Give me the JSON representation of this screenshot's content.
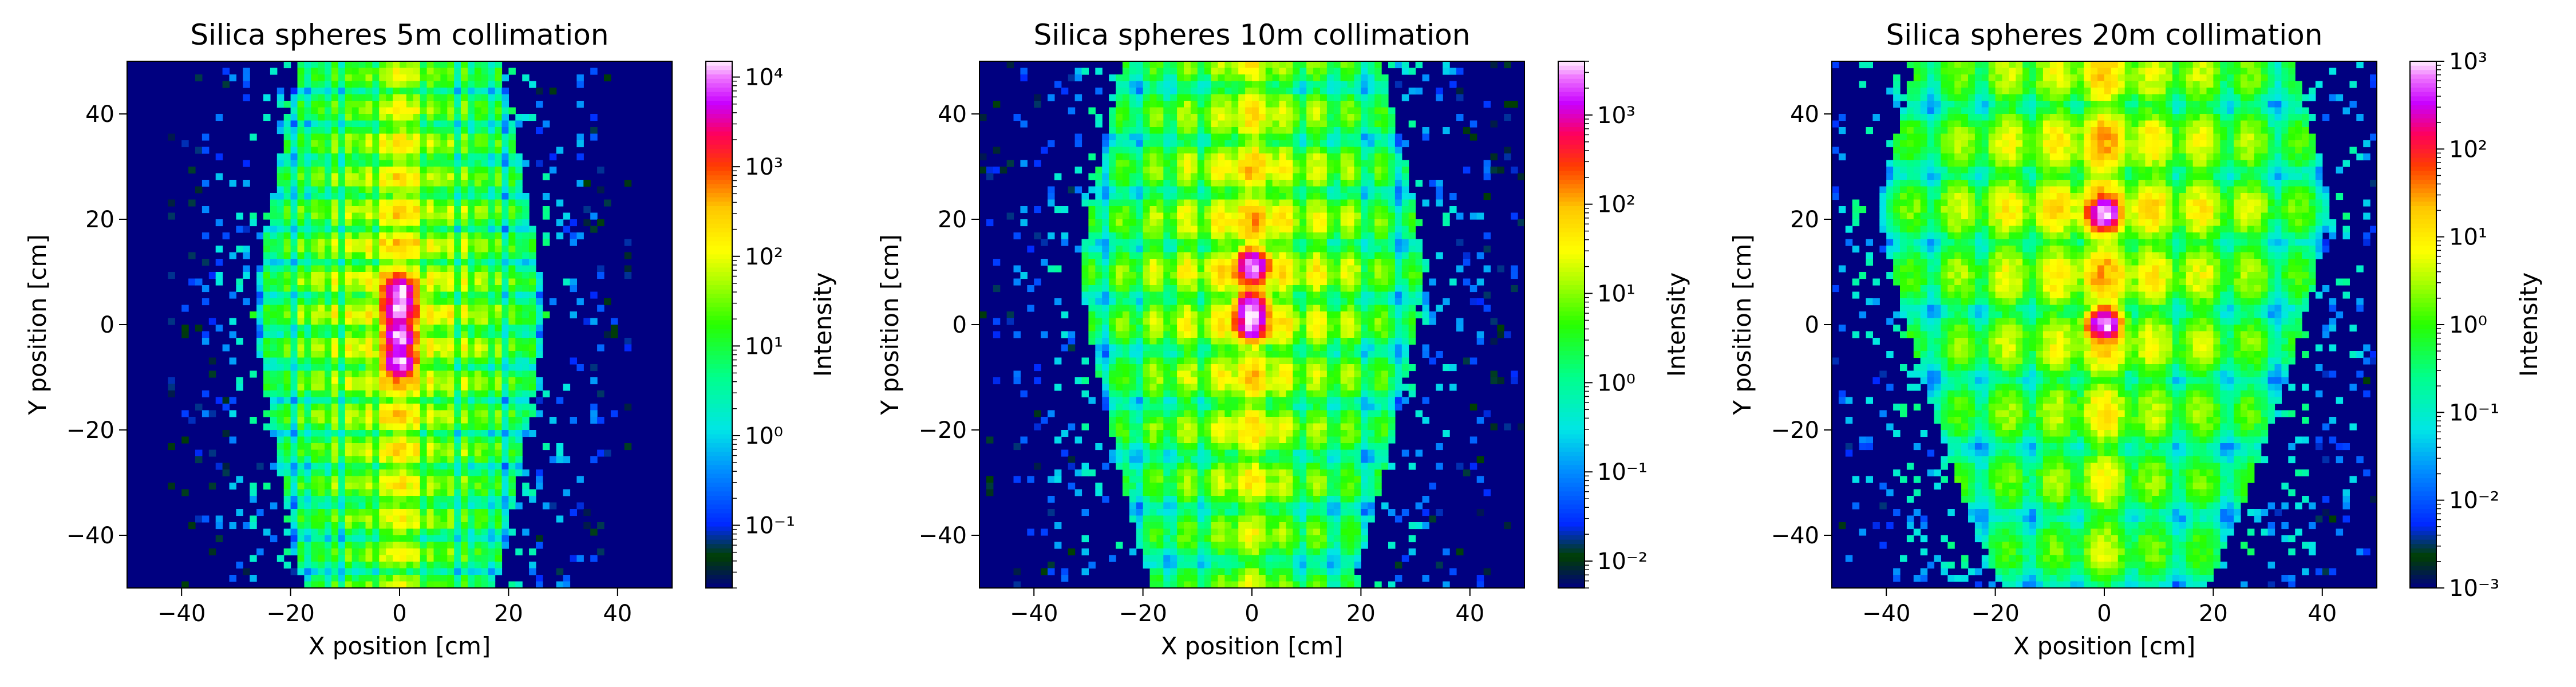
{
  "chart_data": [
    {
      "type": "heatmap",
      "title": "Silica spheres 5m collimation",
      "xlabel": "X position [cm]",
      "ylabel": "Y position [cm]",
      "xlim": [
        -50,
        50
      ],
      "ylim": [
        -50,
        50
      ],
      "xticks": [
        -40,
        -20,
        0,
        20,
        40
      ],
      "yticks": [
        -40,
        -20,
        0,
        20,
        40
      ],
      "xtick_labels": [
        "−40",
        "−20",
        "0",
        "20",
        "40"
      ],
      "ytick_labels": [
        "−40",
        "−20",
        "0",
        "20",
        "40"
      ],
      "colorbar": {
        "label": "Intensity",
        "scale": "log",
        "range": [
          0.02,
          15000
        ],
        "major_exps": [
          -1,
          0,
          1,
          2,
          3,
          4
        ],
        "tick_labels": [
          "10⁻¹",
          "10⁰",
          "10¹",
          "10²",
          "10³",
          "10⁴"
        ]
      },
      "pattern": {
        "beam_center": [
          0,
          2
        ],
        "row_spacing_cm": 6.5,
        "column_spacing_cm": 3,
        "band_half_width_cm": 22,
        "peak_intensity": 15000,
        "hot_spots": [
          [
            0,
            6
          ],
          [
            0,
            3
          ],
          [
            0,
            -2
          ],
          [
            0,
            -7
          ]
        ]
      }
    },
    {
      "type": "heatmap",
      "title": "Silica spheres 10m collimation",
      "xlabel": "X position [cm]",
      "ylabel": "Y position [cm]",
      "xlim": [
        -50,
        50
      ],
      "ylim": [
        -50,
        50
      ],
      "xticks": [
        -40,
        -20,
        0,
        20,
        40
      ],
      "yticks": [
        -40,
        -20,
        0,
        20,
        40
      ],
      "xtick_labels": [
        "−40",
        "−20",
        "0",
        "20",
        "40"
      ],
      "ytick_labels": [
        "−40",
        "−20",
        "0",
        "20",
        "40"
      ],
      "colorbar": {
        "label": "Intensity",
        "scale": "log",
        "range": [
          0.005,
          4000
        ],
        "major_exps": [
          -2,
          -1,
          0,
          1,
          2,
          3
        ],
        "tick_labels": [
          "10⁻²",
          "10⁻¹",
          "10⁰",
          "10¹",
          "10²",
          "10³"
        ]
      },
      "pattern": {
        "beam_center": [
          0,
          10
        ],
        "row_spacing_cm": 10,
        "column_spacing_cm": 6,
        "band_half_width_cm": 26,
        "peak_intensity": 4000,
        "hot_spots": [
          [
            0,
            11
          ],
          [
            0,
            3
          ],
          [
            0,
            0
          ]
        ]
      }
    },
    {
      "type": "heatmap",
      "title": "Silica spheres 20m collimation",
      "xlabel": "X position [cm]",
      "ylabel": "Y position [cm]",
      "xlim": [
        -50,
        50
      ],
      "ylim": [
        -50,
        50
      ],
      "xticks": [
        -40,
        -20,
        0,
        20,
        40
      ],
      "yticks": [
        -40,
        -20,
        0,
        20,
        40
      ],
      "xtick_labels": [
        "−40",
        "−20",
        "0",
        "20",
        "40"
      ],
      "ytick_labels": [
        "−40",
        "−20",
        "0",
        "20",
        "40"
      ],
      "colorbar": {
        "label": "Intensity",
        "scale": "log",
        "range": [
          0.001,
          1000
        ],
        "major_exps": [
          -3,
          -2,
          -1,
          0,
          1,
          2,
          3
        ],
        "tick_labels": [
          "10⁻³",
          "10⁻²",
          "10⁻¹",
          "10⁰",
          "10¹",
          "10²",
          "10³"
        ]
      },
      "pattern": {
        "beam_center": [
          0,
          22
        ],
        "row_spacing_cm": 13,
        "column_spacing_cm": 9,
        "band_half_width_cm": 34,
        "peak_intensity": 1000,
        "hot_spots": [
          [
            0,
            21
          ],
          [
            0,
            0
          ]
        ]
      }
    }
  ]
}
